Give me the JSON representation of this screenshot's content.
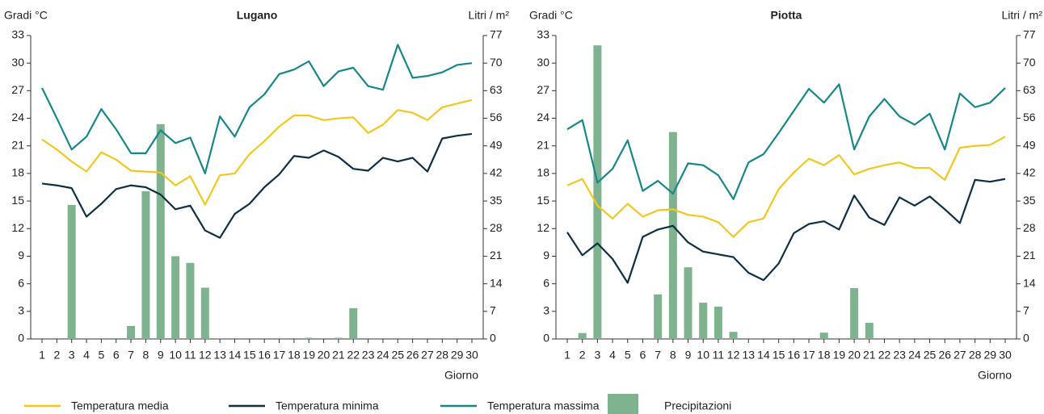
{
  "chart_data": [
    {
      "type": "line",
      "title": "Lugano",
      "ylabel": "Gradi °C",
      "y2label": "Litri / m²",
      "xlabel": "Giorno",
      "categories": [
        1,
        2,
        3,
        4,
        5,
        6,
        7,
        8,
        9,
        10,
        11,
        12,
        13,
        14,
        15,
        16,
        17,
        18,
        19,
        20,
        21,
        22,
        23,
        24,
        25,
        26,
        27,
        28,
        29,
        30
      ],
      "ylim": [
        0,
        33
      ],
      "yticks": [
        0,
        3,
        6,
        9,
        12,
        15,
        18,
        21,
        24,
        27,
        30,
        33
      ],
      "y2lim": [
        0,
        77
      ],
      "y2ticks": [
        0,
        7,
        14,
        21,
        28,
        35,
        42,
        49,
        56,
        63,
        70,
        77
      ],
      "series": [
        {
          "name": "Precipitazioni",
          "type": "bar",
          "axis": "y2",
          "color": "#7fb38f",
          "values": [
            0,
            0,
            34,
            0,
            0,
            0,
            3.3,
            37.5,
            54.5,
            21,
            19.3,
            13,
            0.2,
            0,
            0,
            0,
            0,
            0,
            0.3,
            0,
            0.3,
            7.8,
            0,
            0,
            0,
            0,
            0,
            0,
            0,
            0
          ]
        },
        {
          "name": "Temperatura media",
          "color": "#f2c81c",
          "values": [
            21.7,
            20.6,
            19.3,
            18.2,
            20.3,
            19.5,
            18.3,
            18.2,
            18.1,
            16.7,
            17.7,
            14.6,
            17.8,
            18,
            20.1,
            21.5,
            23.1,
            24.3,
            24.3,
            23.8,
            24,
            24.1,
            22.4,
            23.3,
            24.9,
            24.6,
            23.8,
            25.2,
            25.6,
            26
          ]
        },
        {
          "name": "Temperatura minima",
          "color": "#0e2f44",
          "values": [
            16.9,
            16.7,
            16.4,
            13.3,
            14.7,
            16.3,
            16.7,
            16.5,
            15.7,
            14.1,
            14.5,
            11.8,
            11,
            13.6,
            14.7,
            16.5,
            17.9,
            19.9,
            19.7,
            20.5,
            19.8,
            18.5,
            18.3,
            19.7,
            19.3,
            19.7,
            18.2,
            21.8,
            22.1,
            22.3
          ]
        },
        {
          "name": "Temperatura massima",
          "color": "#17878a",
          "values": [
            27.3,
            24,
            20.6,
            22,
            25,
            22.8,
            20.2,
            20.2,
            22.7,
            21.3,
            21.9,
            18,
            24.2,
            22,
            25.2,
            26.6,
            28.8,
            29.3,
            30.2,
            27.5,
            29.1,
            29.5,
            27.5,
            27.1,
            32,
            28.4,
            28.6,
            29,
            29.8,
            30
          ]
        }
      ]
    },
    {
      "type": "line",
      "title": "Piotta",
      "ylabel": "Gradi °C",
      "y2label": "Litri / m²",
      "xlabel": "Giorno",
      "categories": [
        1,
        2,
        3,
        4,
        5,
        6,
        7,
        8,
        9,
        10,
        11,
        12,
        13,
        14,
        15,
        16,
        17,
        18,
        19,
        20,
        21,
        22,
        23,
        24,
        25,
        26,
        27,
        28,
        29,
        30
      ],
      "ylim": [
        0,
        33
      ],
      "yticks": [
        0,
        3,
        6,
        9,
        12,
        15,
        18,
        21,
        24,
        27,
        30,
        33
      ],
      "y2lim": [
        0,
        77
      ],
      "y2ticks": [
        0,
        7,
        14,
        21,
        28,
        35,
        42,
        49,
        56,
        63,
        70,
        77
      ],
      "series": [
        {
          "name": "Precipitazioni",
          "type": "bar",
          "axis": "y2",
          "color": "#7fb38f",
          "values": [
            0,
            1.5,
            74.5,
            0,
            0,
            0,
            11.3,
            52.5,
            18.2,
            9.2,
            8.2,
            1.8,
            0,
            0,
            0,
            0,
            0,
            1.6,
            0,
            12.9,
            4.1,
            0,
            0,
            0,
            0,
            0,
            0,
            0,
            0,
            0
          ]
        },
        {
          "name": "Temperatura media",
          "color": "#f2c81c",
          "values": [
            16.7,
            17.4,
            14.5,
            13.1,
            14.7,
            13.3,
            14,
            14.1,
            13.5,
            13.3,
            12.7,
            11.1,
            12.7,
            13.1,
            16.3,
            18.1,
            19.6,
            18.9,
            20,
            17.9,
            18.5,
            18.9,
            19.2,
            18.6,
            18.6,
            17.3,
            20.8,
            21,
            21.1,
            22
          ]
        },
        {
          "name": "Temperatura minima",
          "color": "#0e2f44",
          "values": [
            11.6,
            9.1,
            10.4,
            8.7,
            6.1,
            11.1,
            11.9,
            12.3,
            10.5,
            9.5,
            9.2,
            8.9,
            7.2,
            6.4,
            8.2,
            11.5,
            12.5,
            12.8,
            11.9,
            15.6,
            13.2,
            12.4,
            15.4,
            14.5,
            15.5,
            14.1,
            12.6,
            17.3,
            17.1,
            17.4
          ]
        },
        {
          "name": "Temperatura massima",
          "color": "#17878a",
          "values": [
            22.8,
            23.8,
            17,
            18.5,
            21.6,
            16.1,
            17.2,
            15.8,
            19.1,
            18.9,
            17.8,
            15.2,
            19.2,
            20.1,
            22.4,
            24.8,
            27.2,
            25.7,
            27.7,
            20.6,
            24.2,
            26.1,
            24.2,
            23.3,
            24.5,
            20.6,
            26.7,
            25.2,
            25.7,
            27.3
          ]
        }
      ]
    }
  ]
}
